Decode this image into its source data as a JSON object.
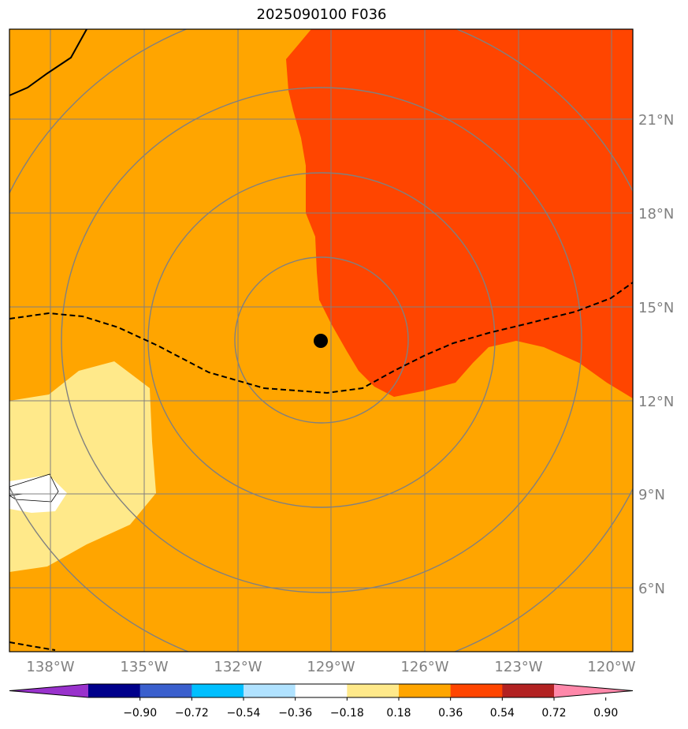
{
  "title": "2025090100 F036",
  "lat_labels": [
    "21°N",
    "18°N",
    "15°N",
    "12°N",
    "9°N",
    "6°N"
  ],
  "lon_labels": [
    "138°W",
    "135°W",
    "132°W",
    "129°W",
    "126°W",
    "123°W",
    "120°W"
  ],
  "colorbar": {
    "colors": [
      "#9932cc",
      "#00008b",
      "#3a5fcd",
      "#00bfff",
      "#b0e2ff",
      "#ffffff",
      "#ffe98a",
      "#ffa500",
      "#ff4500",
      "#b22222",
      "#ff88aa"
    ],
    "tick_labels": [
      "−0.90",
      "−0.72",
      "−0.54",
      "−0.36",
      "−0.18",
      "0.18",
      "0.36",
      "0.54",
      "0.72",
      "0.90"
    ]
  },
  "fill_colors": {
    "base": "#ffa500",
    "high": "#ff4500",
    "light": "#ffe98a",
    "white": "#ffffff"
  },
  "marker_label": "storm-center"
}
